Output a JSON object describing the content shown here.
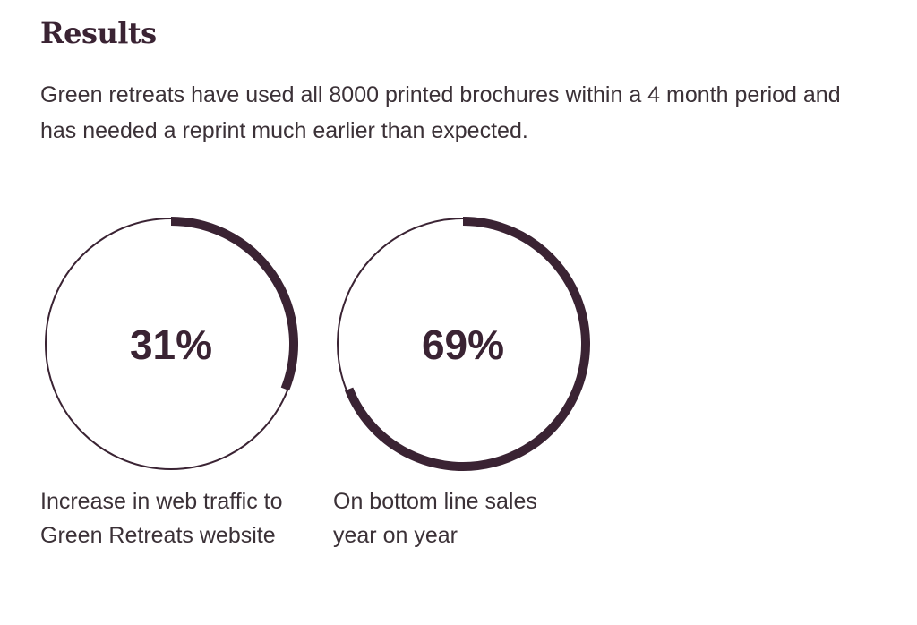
{
  "header": {
    "title": "Results"
  },
  "intro": "Green retreats have used all 8000 printed brochures within a 4 month period and has needed a reprint much earlier than expected.",
  "stats": [
    {
      "value": 31,
      "value_label": "31%",
      "caption": "Increase in web traffic to Green Retreats website"
    },
    {
      "value": 69,
      "value_label": "69%",
      "caption": "On bottom line sales year on year"
    }
  ]
}
